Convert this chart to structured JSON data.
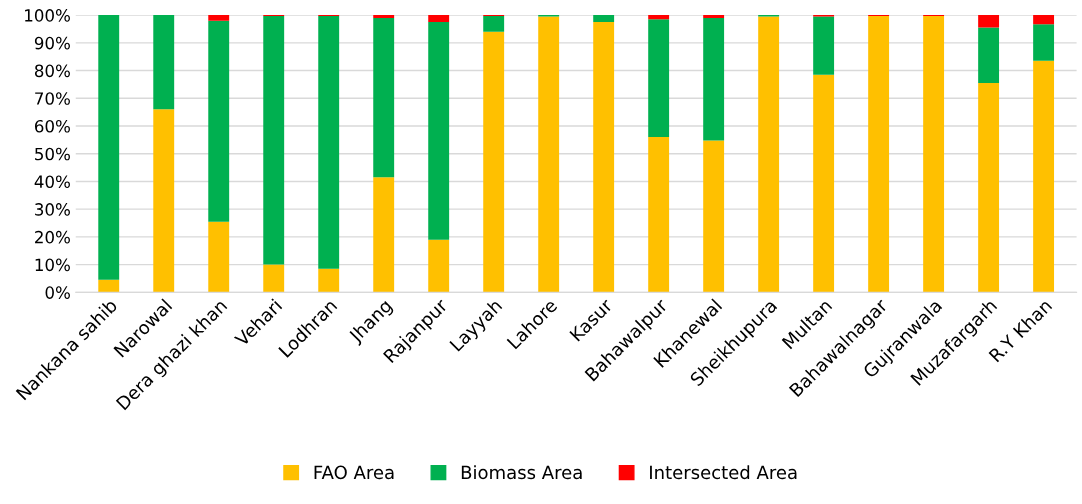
{
  "chart_data": {
    "type": "bar",
    "stacked": true,
    "categories": [
      "Nankana sahib",
      "Narowal",
      "Dera ghazi khan",
      "Vehari",
      "Lodhran",
      "Jhang",
      "Rajanpur",
      "Layyah",
      "Lahore",
      "Kasur",
      "Bahawalpur",
      "Khanewal",
      "Sheikhupura",
      "Multan",
      "Bahawalnagar",
      "Gujranwala",
      "Muzafargarh",
      "R.Y Khan"
    ],
    "series": [
      {
        "name": "FAO Area",
        "color": "#ffc000",
        "values": [
          4.5,
          66,
          25.5,
          10,
          8.5,
          41.5,
          19,
          94,
          99.5,
          97.5,
          56,
          54.8,
          99.5,
          78.5,
          99.7,
          99.7,
          75.5,
          83.5
        ]
      },
      {
        "name": "Biomass Area",
        "color": "#00b050",
        "values": [
          95.5,
          34,
          72.5,
          89.7,
          91.2,
          57.5,
          78.5,
          5.7,
          0.5,
          2.5,
          42.5,
          44.2,
          0.5,
          21,
          0,
          0,
          20,
          13.2
        ]
      },
      {
        "name": "Intersected Area",
        "color": "#ff0000",
        "values": [
          0,
          0,
          2,
          0.3,
          0.3,
          1,
          2.5,
          0.3,
          0,
          0,
          1.5,
          1,
          0,
          0.5,
          0.3,
          0.3,
          4.5,
          3.3
        ]
      }
    ],
    "ylim": [
      0,
      100
    ],
    "yticks": [
      {
        "value": 0,
        "label": "0%"
      },
      {
        "value": 10,
        "label": "10%"
      },
      {
        "value": 20,
        "label": "20%"
      },
      {
        "value": 30,
        "label": "30%"
      },
      {
        "value": 40,
        "label": "40%"
      },
      {
        "value": 50,
        "label": "50%"
      },
      {
        "value": 60,
        "label": "60%"
      },
      {
        "value": 70,
        "label": "70%"
      },
      {
        "value": 80,
        "label": "80%"
      },
      {
        "value": 90,
        "label": "90%"
      },
      {
        "value": 100,
        "label": "100%"
      }
    ],
    "grid": "y",
    "legend": "bottom"
  }
}
